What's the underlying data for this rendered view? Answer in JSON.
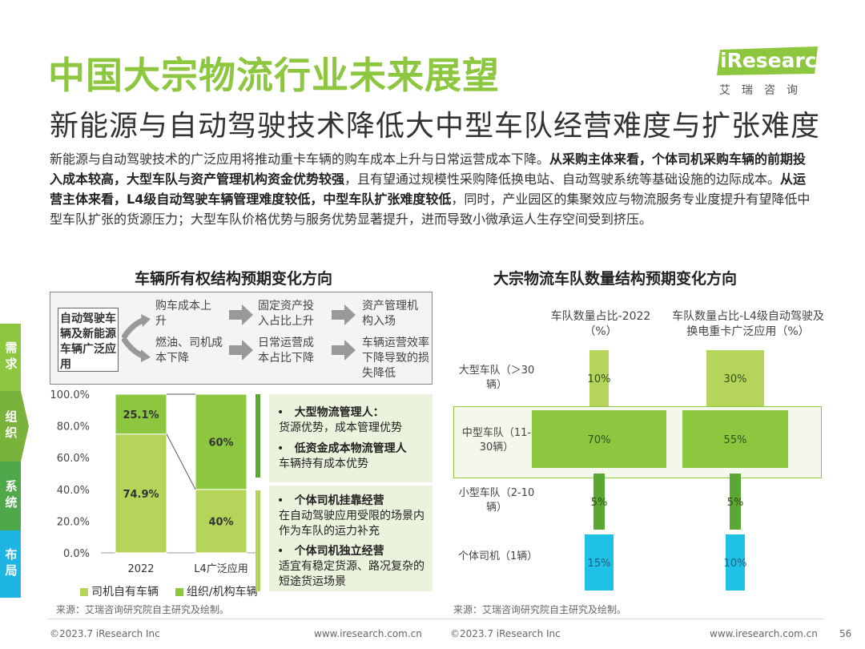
{
  "header": {
    "title": "中国大宗物流行业未来展望",
    "subtitle": "新能源与自动驾驶技术降低大中型车队经营难度与扩张难度",
    "logo_text": "iResearch",
    "logo_sub": "艾瑞咨询"
  },
  "intro": {
    "p1": "新能源与自动驾驶技术的广泛应用将推动重卡车辆的购车成本上升与日常运营成本下降。",
    "b1": "从采购主体来看，个体司机采购车辆的前期投入成本较高，大型车队与资产管理机构资金优势较强",
    "p2": "，且有望通过规模性采购降低换电站、自动驾驶系统等基础设施的边际成本。",
    "b2": "从运营主体来看，L4级自动驾驶车辆管理难度较低，中型车队扩张难度较低",
    "p3": "，同时，产业园区的集聚效应与物流服务专业度提升有望降低中型车队扩张的货源压力；大型车队价格优势与服务优势显著提升，进而导致小微承运人生存空间受到挤压。"
  },
  "side_tabs": [
    "需求",
    "组织",
    "系统",
    "布局"
  ],
  "colors": {
    "green_light": "#b5d55a",
    "green_mid": "#8dc63f",
    "green_dark": "#5aa832",
    "cyan": "#1fc1e6",
    "tab1": "#8dc63f",
    "tab2": "#7ab33b",
    "tab3": "#4fa84a",
    "tab4": "#1fb5e3"
  },
  "left_panel": {
    "title": "车辆所有权结构预期变化方向",
    "flow_title": "自动驾驶车辆及新能源车辆广泛应用",
    "flow_row1": [
      "购车成本上升",
      "固定资产投入占比上升",
      "资产管理机构入场"
    ],
    "flow_row2": [
      "燃油、司机成本下降",
      "日常运营成本占比下降",
      "车辆运营效率下降导致的损失降低"
    ],
    "notes_top": [
      {
        "title": "大型物流管理人：",
        "body": "货源优势，成本管理优势"
      },
      {
        "title": "低资金成本物流管理人",
        "body": "车辆持有成本优势"
      }
    ],
    "notes_bottom": [
      {
        "title": "个体司机挂靠经营",
        "body": "在自动驾驶应用受限的场景内作为车队的运力补充"
      },
      {
        "title": "个体司机独立经营",
        "body": "适宜有稳定货源、路况复杂的短途货运场景"
      }
    ],
    "source": "来源：艾瑞咨询研究院自主研究及绘制。"
  },
  "right_panel": {
    "title": "大宗物流车队数量结构预期变化方向",
    "col1": "车队数量占比-2022（%）",
    "col2": "车队数量占比-L4级自动驾驶及换电重卡广泛应用（%）",
    "rows": [
      {
        "label": "大型车队（＞30辆）"
      },
      {
        "label": "中型车队（11-30辆）"
      },
      {
        "label": "小型车队（2-10辆）"
      },
      {
        "label": "个体司机（1辆）"
      }
    ],
    "source": "来源：艾瑞咨询研究院自主研究及绘制。"
  },
  "chart_data": [
    {
      "type": "bar",
      "stacked": true,
      "categories": [
        "2022",
        "L4广泛应用"
      ],
      "series": [
        {
          "name": "司机自有车辆",
          "values": [
            74.9,
            40
          ],
          "labels": [
            "74.9%",
            "40%"
          ]
        },
        {
          "name": "组织/机构车辆",
          "values": [
            25.1,
            60
          ],
          "labels": [
            "25.1%",
            "60%"
          ]
        }
      ],
      "ylim": [
        0,
        100
      ],
      "yticks": [
        "0.0%",
        "20.0%",
        "40.0%",
        "60.0%",
        "80.0%",
        "100.0%"
      ]
    },
    {
      "type": "bar",
      "orientation": "horizontal",
      "categories": [
        "大型车队（＞30辆）",
        "中型车队（11-30辆）",
        "小型车队（2-10辆）",
        "个体司机（1辆）"
      ],
      "series": [
        {
          "name": "车队数量占比-2022（%）",
          "values": [
            10,
            70,
            5,
            15
          ],
          "labels": [
            "10%",
            "70%",
            "5%",
            "15%"
          ]
        },
        {
          "name": "车队数量占比-L4级自动驾驶及换电重卡广泛应用（%）",
          "values": [
            30,
            55,
            5,
            10
          ],
          "labels": [
            "30%",
            "55%",
            "5%",
            "10%"
          ]
        }
      ]
    }
  ],
  "footer": {
    "left_copy": "©2023.7 iResearch Inc",
    "left_url": "www.iresearch.com.cn",
    "right_copy": "©2023.7 iResearch Inc",
    "right_url": "www.iresearch.com.cn",
    "page": "56"
  }
}
